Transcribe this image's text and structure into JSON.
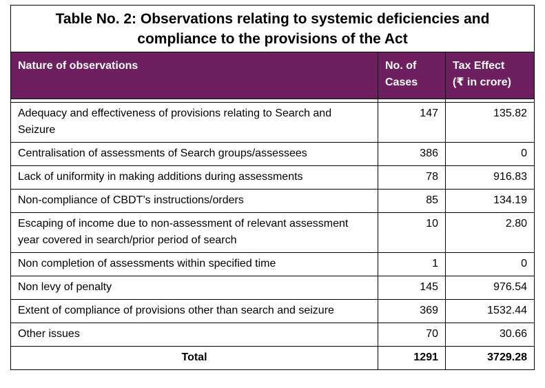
{
  "title_line1": "Table No. 2: Observations relating to systemic deficiencies and",
  "title_line2": "compliance to the provisions of the Act",
  "headers": {
    "nature": "Nature of observations",
    "cases_line1": "No. of",
    "cases_line2": "Cases",
    "tax_line1": "Tax Effect",
    "tax_line2": "(₹ in crore)"
  },
  "rows": [
    {
      "nature": "Adequacy and effectiveness of provisions relating to Search and Seizure",
      "cases": "147",
      "tax": "135.82"
    },
    {
      "nature": "Centralisation of assessments of Search groups/assessees",
      "cases": "386",
      "tax": "0"
    },
    {
      "nature": "Lack of uniformity in making additions during assessments",
      "cases": "78",
      "tax": "916.83"
    },
    {
      "nature": "Non-compliance of CBDT’s instructions/orders",
      "cases": "85",
      "tax": "134.19"
    },
    {
      "nature": "Escaping of income due to non-assessment of relevant assessment year covered in search/prior period of search",
      "cases": "10",
      "tax": "2.80"
    },
    {
      "nature": "Non completion of assessments within specified time",
      "cases": "1",
      "tax": "0"
    },
    {
      "nature": "Non levy of penalty",
      "cases": "145",
      "tax": "976.54"
    },
    {
      "nature": "Extent of compliance of provisions other than search and seizure",
      "cases": "369",
      "tax": "1532.44"
    },
    {
      "nature": "Other issues",
      "cases": "70",
      "tax": "30.66"
    }
  ],
  "total": {
    "label": "Total",
    "cases": "1291",
    "tax": "3729.28"
  }
}
